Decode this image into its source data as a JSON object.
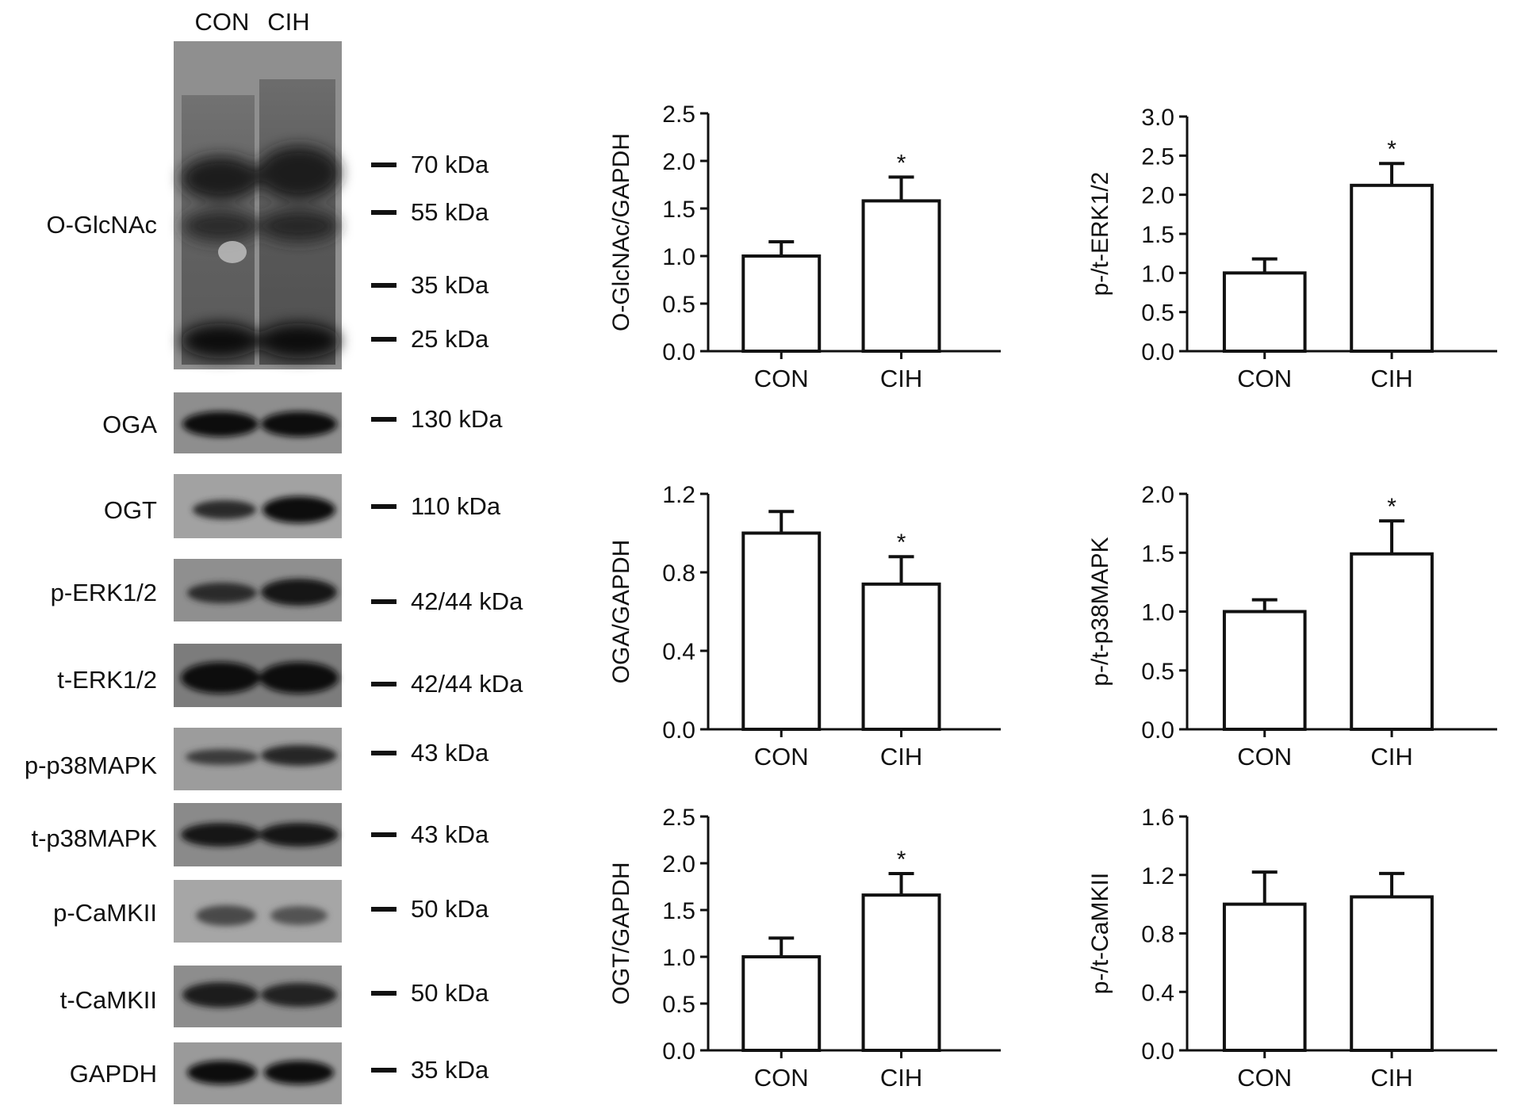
{
  "blot": {
    "lane_header": [
      "CON",
      "CIH"
    ],
    "panels": [
      {
        "label": "O-GlcNAc",
        "markers": [
          "70 kDa",
          "55 kDa",
          "35 kDa",
          "25 kDa"
        ]
      },
      {
        "label": "OGA",
        "markers": [
          "130 kDa"
        ]
      },
      {
        "label": "OGT",
        "markers": [
          "110 kDa"
        ]
      },
      {
        "label": "p-ERK1/2",
        "markers": [
          "42/44 kDa"
        ]
      },
      {
        "label": "t-ERK1/2",
        "markers": [
          "42/44 kDa"
        ]
      },
      {
        "label": "p-p38MAPK",
        "markers": [
          "43 kDa"
        ]
      },
      {
        "label": "t-p38MAPK",
        "markers": [
          "43 kDa"
        ]
      },
      {
        "label": "p-CaMKII",
        "markers": [
          "50 kDa"
        ]
      },
      {
        "label": "t-CaMKII",
        "markers": [
          "50 kDa"
        ]
      },
      {
        "label": "GAPDH",
        "markers": [
          "35 kDa"
        ]
      }
    ]
  },
  "chart_data": [
    {
      "type": "bar",
      "ylabel": "O-GlcNAc/GAPDH",
      "categories": [
        "CON",
        "CIH"
      ],
      "values": [
        1.0,
        1.58
      ],
      "errors": [
        0.15,
        0.25
      ],
      "significance": [
        "",
        "*"
      ],
      "ylim": [
        0,
        2.5
      ],
      "yticks": [
        "0.0",
        "0.5",
        "1.0",
        "1.5",
        "2.0",
        "2.5"
      ]
    },
    {
      "type": "bar",
      "ylabel": "p-/t-ERK1/2",
      "categories": [
        "CON",
        "CIH"
      ],
      "values": [
        1.0,
        2.12
      ],
      "errors": [
        0.18,
        0.28
      ],
      "significance": [
        "",
        "*"
      ],
      "ylim": [
        0,
        3.0
      ],
      "yticks": [
        "0.0",
        "0.5",
        "1.0",
        "1.5",
        "2.0",
        "2.5",
        "3.0"
      ]
    },
    {
      "type": "bar",
      "ylabel": "OGA/GAPDH",
      "categories": [
        "CON",
        "CIH"
      ],
      "values": [
        1.0,
        0.74
      ],
      "errors": [
        0.11,
        0.14
      ],
      "significance": [
        "",
        "*"
      ],
      "ylim": [
        0,
        1.2
      ],
      "yticks": [
        "0.0",
        "0.4",
        "0.8",
        "1.2"
      ]
    },
    {
      "type": "bar",
      "ylabel": "p-/t-p38MAPK",
      "categories": [
        "CON",
        "CIH"
      ],
      "values": [
        1.0,
        1.49
      ],
      "errors": [
        0.1,
        0.28
      ],
      "significance": [
        "",
        "*"
      ],
      "ylim": [
        0,
        2.0
      ],
      "yticks": [
        "0.0",
        "0.5",
        "1.0",
        "1.5",
        "2.0"
      ]
    },
    {
      "type": "bar",
      "ylabel": "OGT/GAPDH",
      "categories": [
        "CON",
        "CIH"
      ],
      "values": [
        1.0,
        1.66
      ],
      "errors": [
        0.2,
        0.23
      ],
      "significance": [
        "",
        "*"
      ],
      "ylim": [
        0,
        2.5
      ],
      "yticks": [
        "0.0",
        "0.5",
        "1.0",
        "1.5",
        "2.0",
        "2.5"
      ]
    },
    {
      "type": "bar",
      "ylabel": "p-/t-CaMKII",
      "categories": [
        "CON",
        "CIH"
      ],
      "values": [
        1.0,
        1.05
      ],
      "errors": [
        0.22,
        0.16
      ],
      "significance": [
        "",
        ""
      ],
      "ylim": [
        0,
        1.6
      ],
      "yticks": [
        "0.0",
        "0.4",
        "0.8",
        "1.2",
        "1.6"
      ]
    }
  ]
}
